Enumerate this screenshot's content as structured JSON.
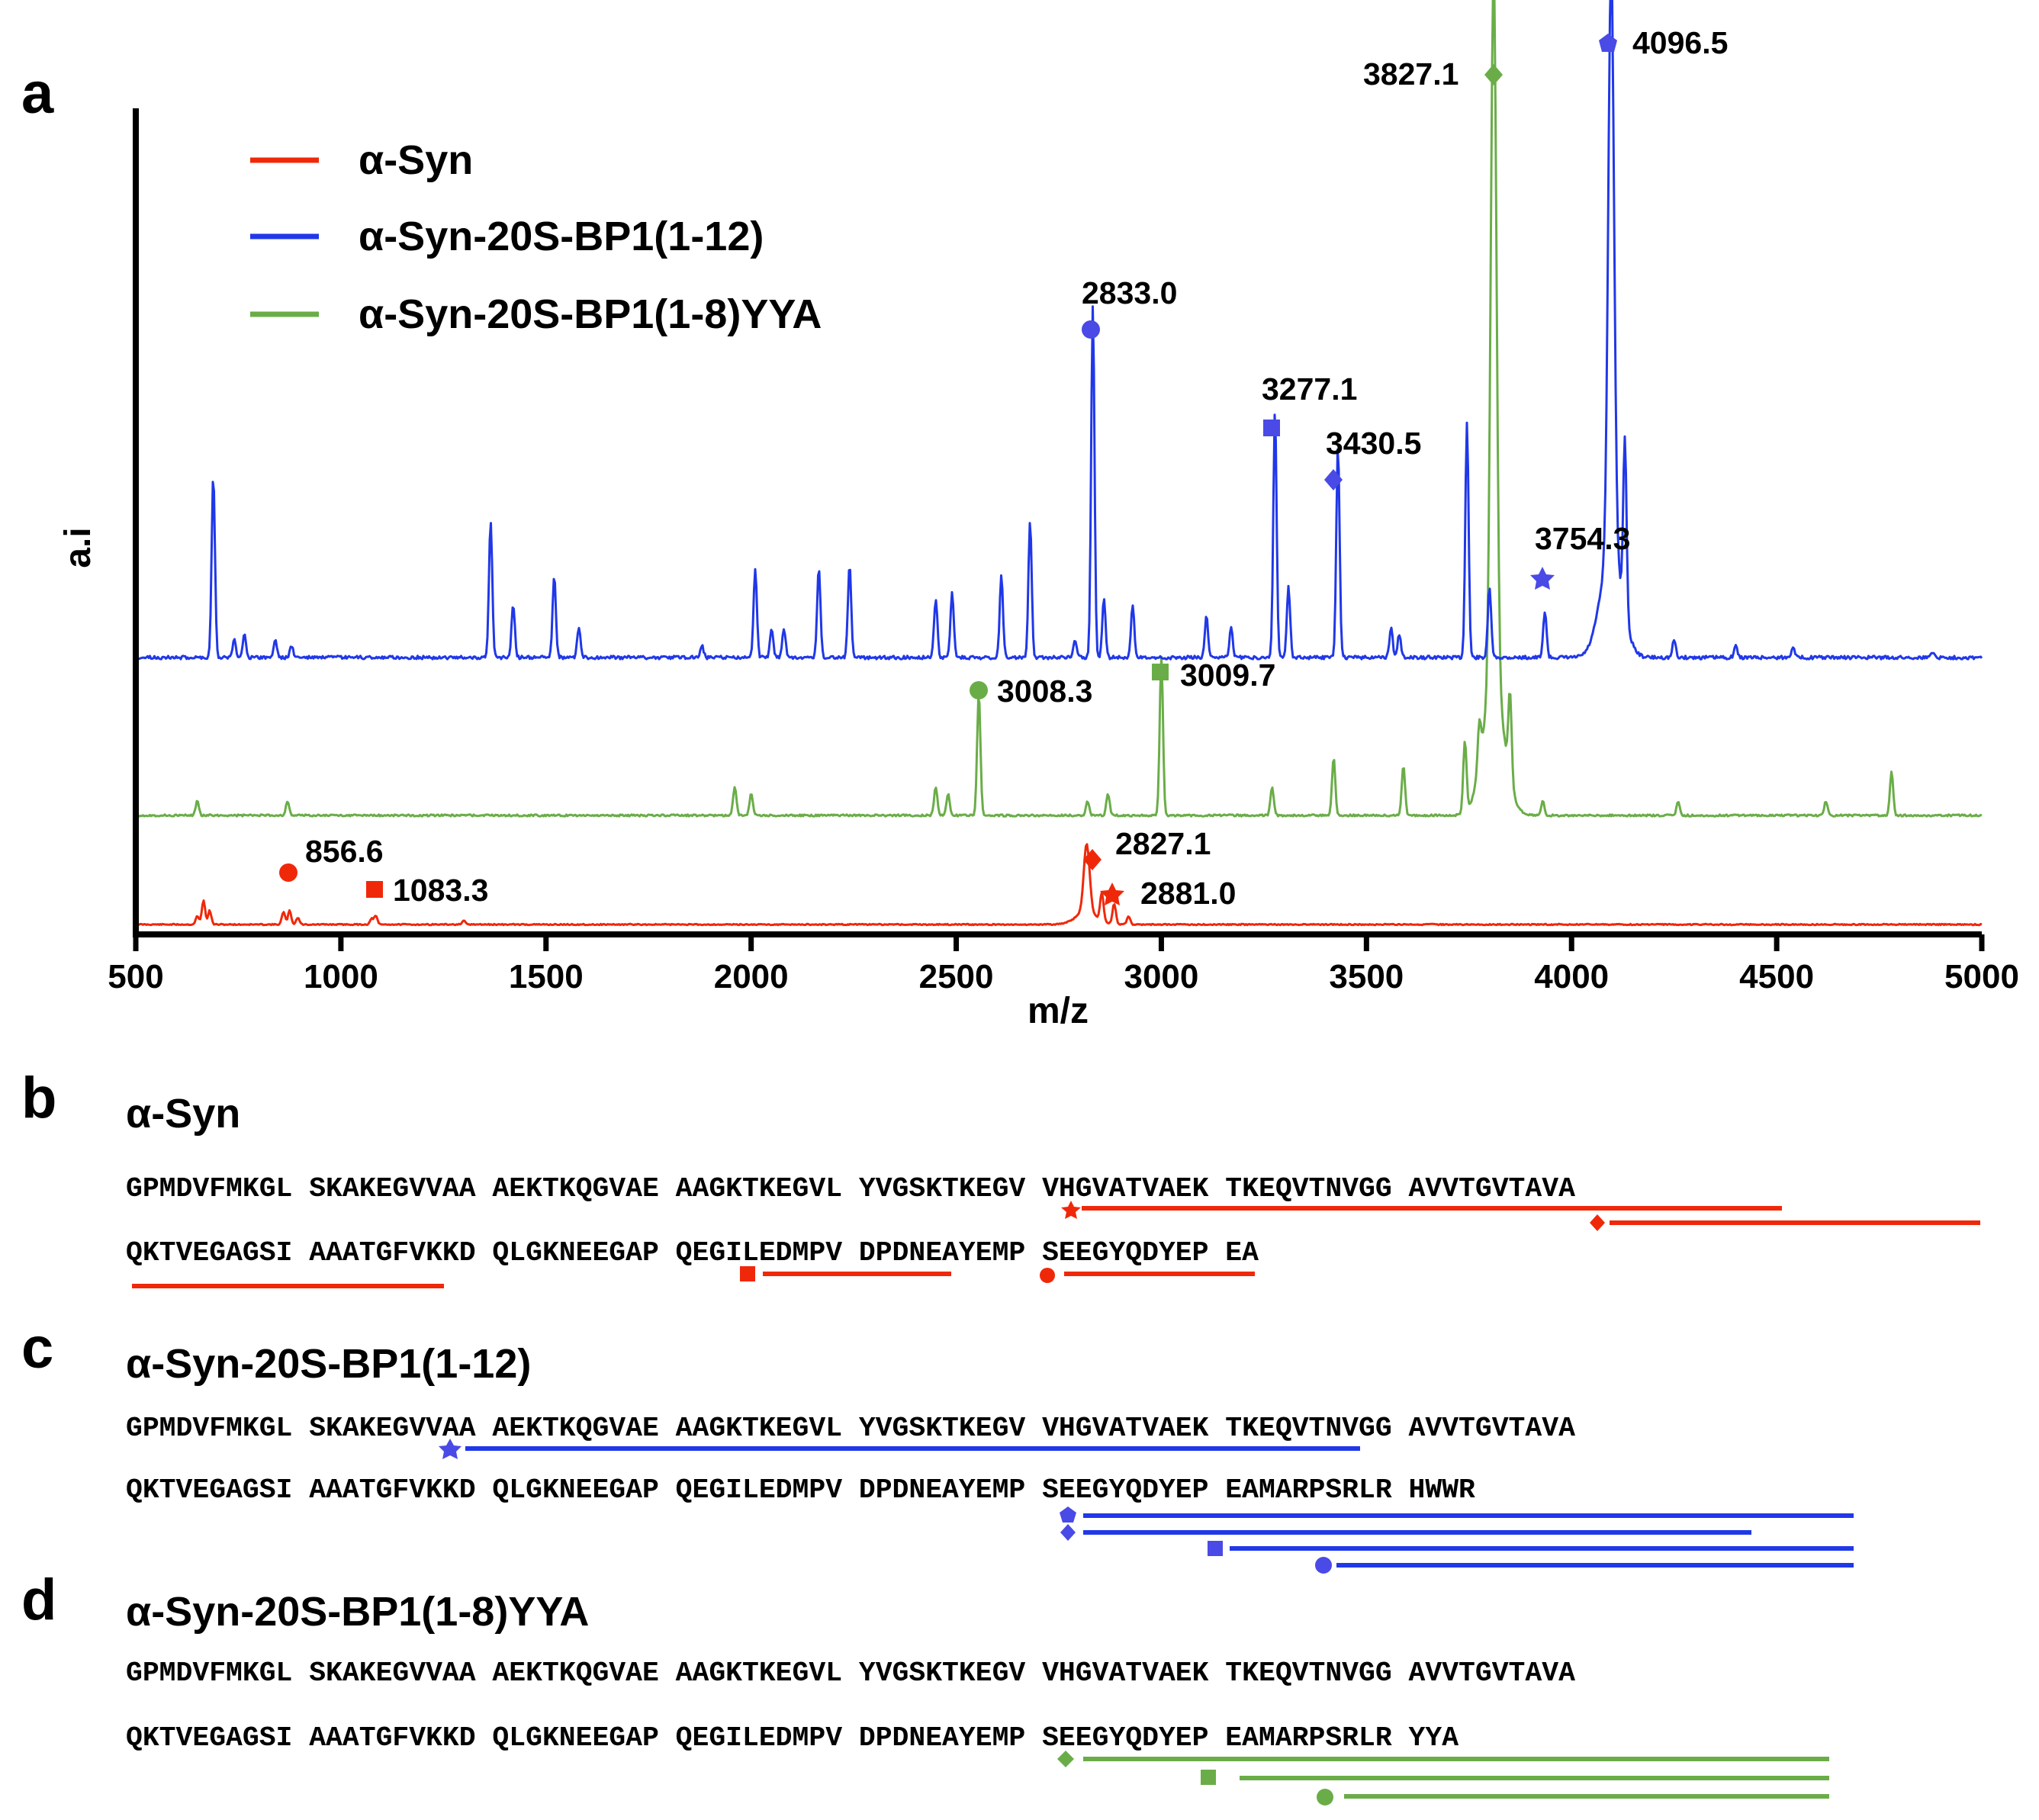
{
  "panels": {
    "a": "a",
    "b": "b",
    "c": "c",
    "d": "d"
  },
  "colors": {
    "red": "#f0280a",
    "blue": "#2038e8",
    "green": "#6aad48",
    "blue_marker": "#4a4ae6"
  },
  "chart_data": {
    "type": "line",
    "title": "",
    "xlabel": "m/z",
    "ylabel": "a.i",
    "xlim": [
      500,
      5000
    ],
    "xticks": [
      500,
      1000,
      1500,
      2000,
      2500,
      3000,
      3500,
      4000,
      4500,
      5000
    ],
    "grid": false,
    "legend_position": "top-left",
    "series": [
      {
        "name": "α-Syn",
        "color": "#f0280a",
        "peaks": [
          [
            650,
            0.12
          ],
          [
            665,
            0.35
          ],
          [
            680,
            0.2
          ],
          [
            860,
            0.18
          ],
          [
            875,
            0.2
          ],
          [
            895,
            0.1
          ],
          [
            1075,
            0.08
          ],
          [
            1085,
            0.12
          ],
          [
            1300,
            0.05
          ],
          [
            2818,
            1.0
          ],
          [
            2855,
            0.4
          ],
          [
            2885,
            0.3
          ],
          [
            2920,
            0.12
          ]
        ]
      },
      {
        "name": "α-Syn-20S-BP1(1-12)",
        "color": "#2038e8",
        "peaks": [
          [
            689,
            0.31
          ],
          [
            740,
            0.03
          ],
          [
            765,
            0.04
          ],
          [
            840,
            0.03
          ],
          [
            880,
            0.02
          ],
          [
            1365,
            0.23
          ],
          [
            1420,
            0.09
          ],
          [
            1520,
            0.14
          ],
          [
            1580,
            0.05
          ],
          [
            1880,
            0.02
          ],
          [
            2010,
            0.15
          ],
          [
            2050,
            0.05
          ],
          [
            2080,
            0.05
          ],
          [
            2165,
            0.15
          ],
          [
            2240,
            0.16
          ],
          [
            2450,
            0.1
          ],
          [
            2490,
            0.11
          ],
          [
            2610,
            0.14
          ],
          [
            2680,
            0.23
          ],
          [
            2790,
            0.03
          ],
          [
            2833,
            0.6
          ],
          [
            2860,
            0.1
          ],
          [
            2930,
            0.09
          ],
          [
            3110,
            0.07
          ],
          [
            3170,
            0.05
          ],
          [
            3277,
            0.42
          ],
          [
            3310,
            0.12
          ],
          [
            3430.5,
            0.36
          ],
          [
            3560,
            0.05
          ],
          [
            3580,
            0.04
          ],
          [
            3745,
            0.4
          ],
          [
            3800,
            0.12
          ],
          [
            3935,
            0.08
          ],
          [
            4096.5,
            1.0
          ],
          [
            4130,
            0.3
          ],
          [
            4250,
            0.03
          ],
          [
            4400,
            0.02
          ],
          [
            4540,
            0.02
          ],
          [
            4880,
            0.01
          ]
        ]
      },
      {
        "name": "α-Syn-20S-BP1(1-8)YYA",
        "color": "#6aad48",
        "peaks": [
          [
            650,
            0.02
          ],
          [
            870,
            0.02
          ],
          [
            1960,
            0.04
          ],
          [
            2000,
            0.03
          ],
          [
            2450,
            0.04
          ],
          [
            2480,
            0.03
          ],
          [
            2555,
            0.17
          ],
          [
            2820,
            0.02
          ],
          [
            2870,
            0.03
          ],
          [
            3000,
            0.22
          ],
          [
            3270,
            0.04
          ],
          [
            3420,
            0.08
          ],
          [
            3590,
            0.07
          ],
          [
            3740,
            0.1
          ],
          [
            3775,
            0.06
          ],
          [
            3810,
            1.0
          ],
          [
            3850,
            0.12
          ],
          [
            3930,
            0.02
          ],
          [
            4260,
            0.02
          ],
          [
            4620,
            0.02
          ],
          [
            4780,
            0.06
          ]
        ]
      }
    ],
    "annotations": [
      {
        "text": "4096.5",
        "x": 4096.5,
        "series": "α-Syn-20S-BP1(1-12)",
        "marker": "pentagon"
      },
      {
        "text": "3827.1",
        "x": 3827.1,
        "series": "α-Syn-20S-BP1(1-8)YYA",
        "marker": "diamond"
      },
      {
        "text": "2833.0",
        "x": 2833.0,
        "series": "α-Syn-20S-BP1(1-12)",
        "marker": "circle"
      },
      {
        "text": "3277.1",
        "x": 3277.1,
        "series": "α-Syn-20S-BP1(1-12)",
        "marker": "square"
      },
      {
        "text": "3430.5",
        "x": 3430.5,
        "series": "α-Syn-20S-BP1(1-12)",
        "marker": "diamond"
      },
      {
        "text": "3754.3",
        "x": 3754.3,
        "series": "α-Syn-20S-BP1(1-12)",
        "marker": "star"
      },
      {
        "text": "3008.3",
        "x": 3008.3,
        "series": "α-Syn-20S-BP1(1-8)YYA",
        "marker": "circle"
      },
      {
        "text": "3009.7",
        "x": 3009.7,
        "series": "α-Syn-20S-BP1(1-8)YYA",
        "marker": "square"
      },
      {
        "text": "856.6",
        "x": 856.6,
        "series": "α-Syn",
        "marker": "circle"
      },
      {
        "text": "1083.3",
        "x": 1083.3,
        "series": "α-Syn",
        "marker": "square"
      },
      {
        "text": "2827.1",
        "x": 2827.1,
        "series": "α-Syn",
        "marker": "diamond"
      },
      {
        "text": "2881.0",
        "x": 2881.0,
        "series": "α-Syn",
        "marker": "star"
      }
    ]
  },
  "panel_b": {
    "title": "α-Syn",
    "lines": [
      "GPMDVFMKGL SKAKEGVVAA AEKTKQGVAE AAGKTKEGVL YVGSKTKEGV VHGVATVAEK TKEQVTNVGG AVVTGVTAVA",
      "QKTVEGAGSI AAATGFVKKD QLGKNEEGAP QEGILEDMPV DPDNEAYEMP SEEGYQDYEP EA"
    ]
  },
  "panel_c": {
    "title": "α-Syn-20S-BP1(1-12)",
    "lines": [
      "GPMDVFMKGL SKAKEGVVAA AEKTKQGVAE AAGKTKEGVL YVGSKTKEGV VHGVATVAEK TKEQVTNVGG AVVTGVTAVA",
      "QKTVEGAGSI AAATGFVKKD QLGKNEEGAP QEGILEDMPV DPDNEAYEMP SEEGYQDYEP EAMARPSRLR HWWR"
    ]
  },
  "panel_d": {
    "title": "α-Syn-20S-BP1(1-8)YYA",
    "lines": [
      "GPMDVFMKGL SKAKEGVVAA AEKTKQGVAE AAGKTKEGVL YVGSKTKEGV VHGVATVAEK TKEQVTNVGG AVVTGVTAVA",
      "QKTVEGAGSI AAATGFVKKD QLGKNEEGAP QEGILEDMPV DPDNEAYEMP SEEGYQDYEP EAMARPSRLR YYA"
    ]
  }
}
